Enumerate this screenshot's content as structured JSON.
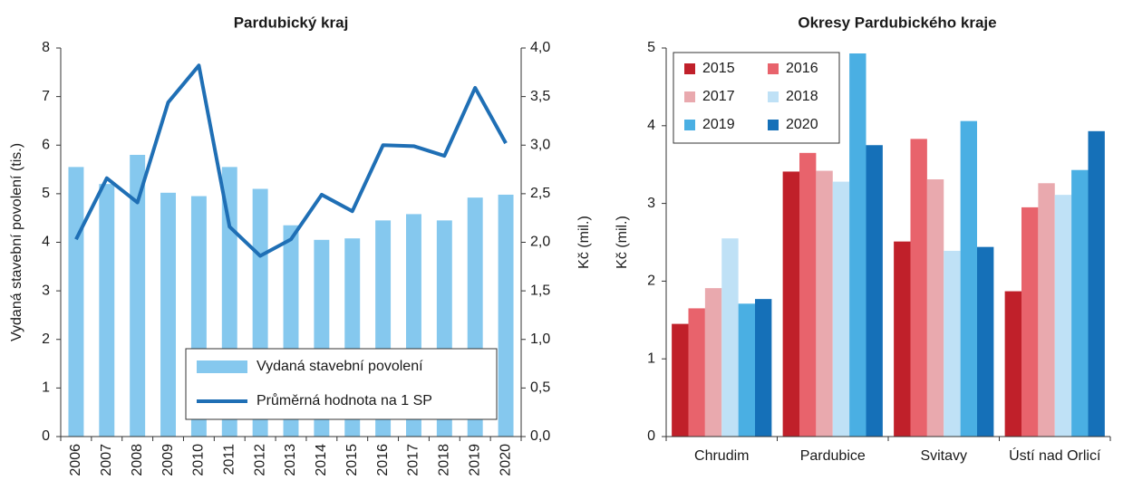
{
  "chart_data": [
    {
      "type": "bar",
      "title": "Pardubický kraj",
      "y_label": "Vydaná stavební povolení (tis.)",
      "y2_label": "Kč (mil.)",
      "categories": [
        "2006",
        "2007",
        "2008",
        "2009",
        "2010",
        "2011",
        "2012",
        "2013",
        "2014",
        "2015",
        "2016",
        "2017",
        "2018",
        "2019",
        "2020"
      ],
      "series": [
        {
          "name": "Vydaná stavební povolení",
          "color": "#85c8ee",
          "values": [
            5.55,
            5.2,
            5.8,
            5.02,
            4.95,
            5.55,
            5.1,
            4.35,
            4.05,
            4.08,
            4.45,
            4.58,
            4.45,
            4.92,
            4.98
          ]
        },
        {
          "name": "Průměrná hodnota na 1 SP",
          "color": "#1f6fb5",
          "type": "line",
          "axis": "y2",
          "values": [
            2.03,
            2.66,
            2.41,
            3.44,
            3.82,
            2.16,
            1.86,
            2.03,
            2.49,
            2.32,
            3.0,
            2.99,
            2.89,
            3.59,
            3.02
          ]
        }
      ],
      "ylim": [
        0,
        8
      ],
      "yticks": [
        0,
        1,
        2,
        3,
        4,
        5,
        6,
        7,
        8
      ],
      "y2lim": [
        0,
        4
      ],
      "y2ticks": [
        {
          "value": 0,
          "label": "0,0"
        },
        {
          "value": 0.5,
          "label": "0,5"
        },
        {
          "value": 1,
          "label": "1,0"
        },
        {
          "value": 1.5,
          "label": "1,5"
        },
        {
          "value": 2,
          "label": "2,0"
        },
        {
          "value": 2.5,
          "label": "2,5"
        },
        {
          "value": 3,
          "label": "3,0"
        },
        {
          "value": 3.5,
          "label": "3,5"
        },
        {
          "value": 4,
          "label": "4,0"
        }
      ],
      "rotate_categories": true,
      "legend": "lower right"
    },
    {
      "type": "bar",
      "title": "Okresy Pardubického kraje",
      "y_label": "Kč (mil.)",
      "categories": [
        "Chrudim",
        "Pardubice",
        "Svitavy",
        "Ústí nad Orlicí"
      ],
      "series": [
        {
          "name": "2015",
          "color": "#c0202a",
          "values": [
            1.45,
            3.41,
            2.51,
            1.87
          ]
        },
        {
          "name": "2016",
          "color": "#e8636c",
          "values": [
            1.65,
            3.65,
            3.83,
            2.95
          ]
        },
        {
          "name": "2017",
          "color": "#e9a9ae",
          "values": [
            1.91,
            3.42,
            3.31,
            3.26
          ]
        },
        {
          "name": "2018",
          "color": "#bfe1f6",
          "values": [
            2.55,
            3.28,
            2.39,
            3.11
          ]
        },
        {
          "name": "2019",
          "color": "#4aafe3",
          "values": [
            1.71,
            4.93,
            4.06,
            3.43
          ]
        },
        {
          "name": "2020",
          "color": "#1570b8",
          "values": [
            1.77,
            3.75,
            2.44,
            3.93
          ]
        }
      ],
      "ylim": [
        0,
        5
      ],
      "yticks": [
        0,
        1,
        2,
        3,
        4,
        5
      ],
      "rotate_categories": false,
      "legend": "upper left"
    }
  ]
}
